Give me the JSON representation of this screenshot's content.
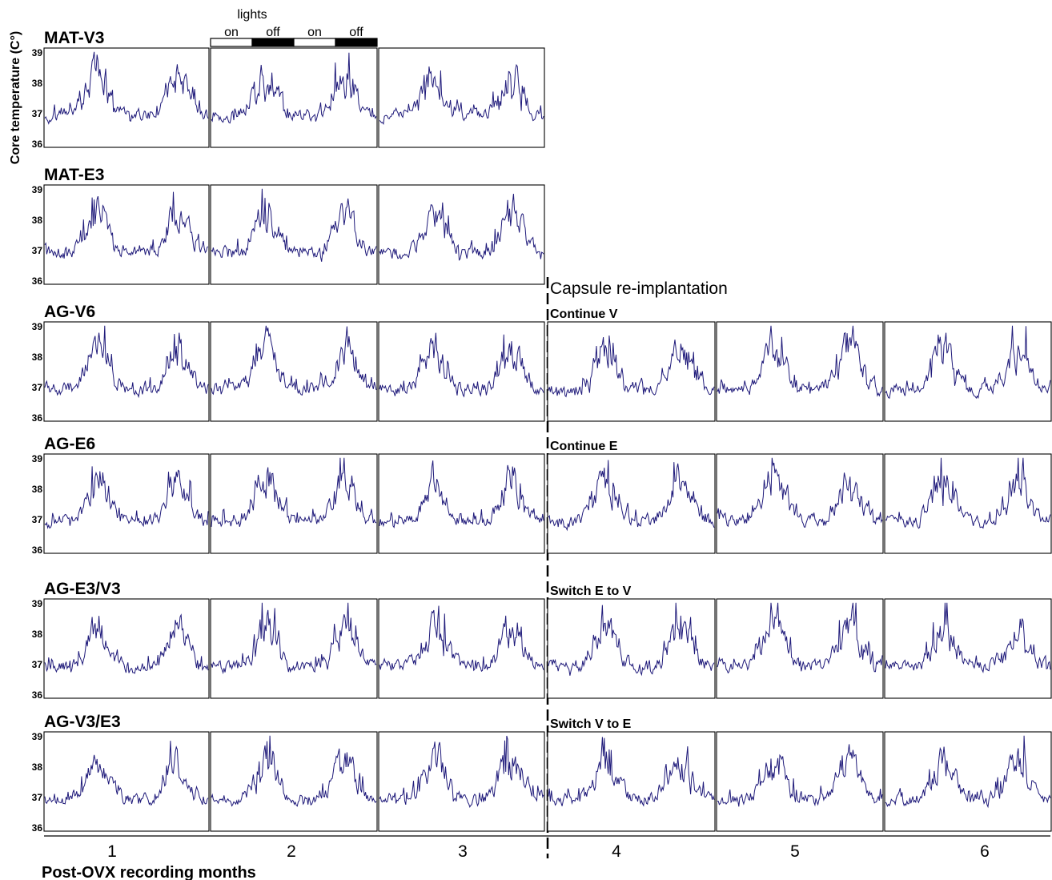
{
  "chart_data": {
    "type": "line",
    "ylabel": "Core temperature (C°)",
    "xlabel": "Post-OVX recording months",
    "ylim": [
      36,
      39
    ],
    "yticks": [
      "39",
      "38",
      "37",
      "36"
    ],
    "x_ticks": [
      "1",
      "2",
      "3",
      "4",
      "5",
      "6"
    ],
    "line_color": "#1f1a7a",
    "lights": {
      "title": "lights",
      "labels": [
        "on",
        "off",
        "on",
        "off"
      ]
    },
    "reimplant_label": "Capsule re-implantation",
    "rows": [
      {
        "name": "MAT-V3",
        "annotation": "",
        "months": 3,
        "seed": 11
      },
      {
        "name": "MAT-E3",
        "annotation": "",
        "months": 3,
        "seed": 23
      },
      {
        "name": "AG-V6",
        "annotation": "Continue V",
        "months": 6,
        "seed": 37
      },
      {
        "name": "AG-E6",
        "annotation": "Continue E",
        "months": 6,
        "seed": 41
      },
      {
        "name": "AG-E3/V3",
        "annotation": "Switch E to V",
        "months": 6,
        "seed": 53
      },
      {
        "name": "AG-V3/E3",
        "annotation": "Switch V to E",
        "months": 6,
        "seed": 67
      }
    ]
  }
}
